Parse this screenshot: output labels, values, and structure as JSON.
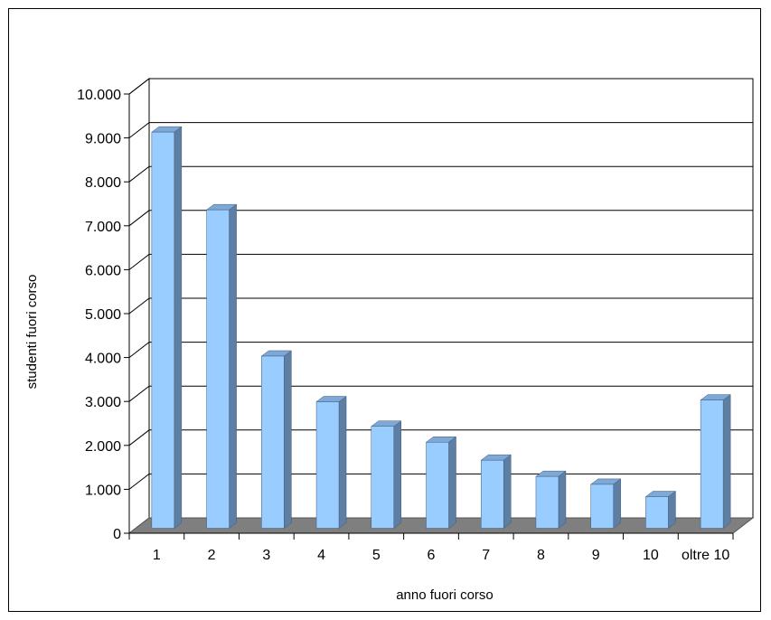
{
  "chart_data": {
    "type": "bar",
    "style": "3d-column",
    "categories": [
      "1",
      "2",
      "3",
      "4",
      "5",
      "6",
      "7",
      "8",
      "9",
      "10",
      "oltre 10"
    ],
    "values": [
      9020,
      7250,
      3920,
      2880,
      2320,
      1960,
      1550,
      1180,
      1000,
      720,
      2920
    ],
    "xlabel": "anno fuori corso",
    "ylabel": "studenti fuori corso",
    "ylim": [
      0,
      10000
    ],
    "yticks": [
      0,
      1000,
      2000,
      3000,
      4000,
      5000,
      6000,
      7000,
      8000,
      9000,
      10000
    ],
    "ytick_labels": [
      "0",
      "1.000",
      "2.000",
      "3.000",
      "4.000",
      "5.000",
      "6.000",
      "7.000",
      "8.000",
      "9.000",
      "10.000"
    ],
    "grid": true,
    "legend": "none",
    "colors": {
      "bar_front": "#99ccff",
      "bar_side": "#5e7fa3",
      "bar_top": "#7ea8d6",
      "floor": "#7f7f7f",
      "grid": "#000000"
    }
  }
}
